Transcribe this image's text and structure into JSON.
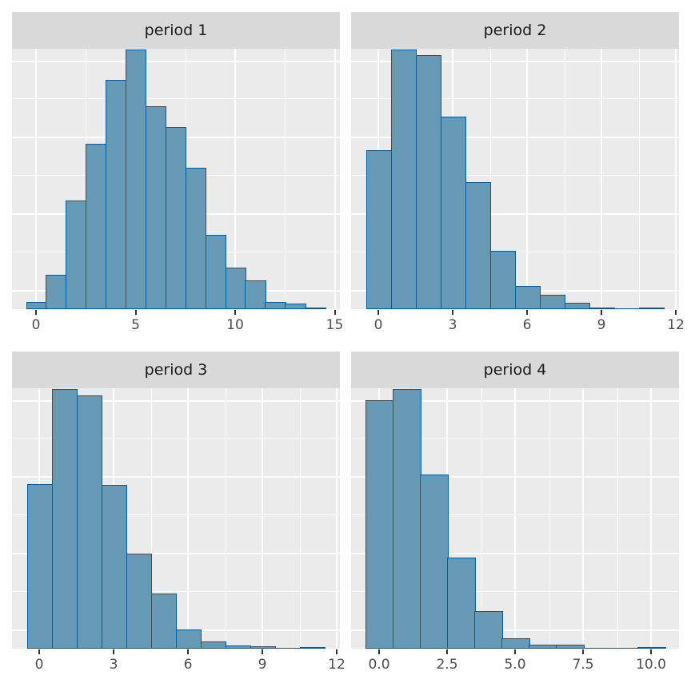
{
  "figure": {
    "panels": [
      {
        "title": "period 1",
        "x_ticks": [
          "0",
          "5",
          "10",
          "15"
        ]
      },
      {
        "title": "period 2",
        "x_ticks": [
          "0",
          "3",
          "6",
          "9",
          "12"
        ]
      },
      {
        "title": "period 3",
        "x_ticks": [
          "0",
          "3",
          "6",
          "9",
          "12"
        ]
      },
      {
        "title": "period 4",
        "x_ticks": [
          "0.0",
          "2.5",
          "5.0",
          "7.5",
          "10.0"
        ]
      }
    ],
    "colors": {
      "bar_fill": "#6699b4",
      "bar_border": "#0b5a96",
      "panel_bg": "#ebebeb",
      "strip_bg": "#d9d9d9",
      "grid": "#ffffff"
    }
  },
  "chart_data": [
    {
      "type": "bar",
      "title": "period 1",
      "xlabel": "",
      "ylabel": "",
      "categories": [
        0,
        1,
        2,
        3,
        4,
        5,
        6,
        7,
        8,
        9,
        10,
        11,
        12,
        13,
        14
      ],
      "values": [
        9,
        43,
        136,
        207,
        287,
        325,
        254,
        228,
        177,
        93,
        52,
        36,
        9,
        7,
        2
      ],
      "value_units": "relative bar height (y-axis unlabeled)",
      "x_ticks": [
        0,
        5,
        10,
        15
      ],
      "xlim": [
        -1.2,
        15.2
      ],
      "grid": true
    },
    {
      "type": "bar",
      "title": "period 2",
      "xlabel": "",
      "ylabel": "",
      "categories": [
        0,
        1,
        2,
        3,
        4,
        5,
        6,
        7,
        8,
        9,
        10,
        11
      ],
      "values": [
        199,
        325,
        318,
        241,
        159,
        73,
        29,
        18,
        8,
        2,
        0,
        2
      ],
      "value_units": "relative bar height (y-axis unlabeled)",
      "x_ticks": [
        0,
        3,
        6,
        9,
        12
      ],
      "xlim": [
        -1.1,
        12.1
      ],
      "grid": true
    },
    {
      "type": "bar",
      "title": "period 3",
      "xlabel": "",
      "ylabel": "",
      "categories": [
        0,
        1,
        2,
        3,
        4,
        5,
        6,
        7,
        8,
        9,
        10,
        11
      ],
      "values": [
        206,
        325,
        317,
        205,
        119,
        69,
        24,
        9,
        4,
        3,
        0,
        2
      ],
      "value_units": "relative bar height (y-axis unlabeled)",
      "x_ticks": [
        0,
        3,
        6,
        9,
        12
      ],
      "xlim": [
        -1.1,
        12.1
      ],
      "grid": true
    },
    {
      "type": "bar",
      "title": "period 4",
      "xlabel": "",
      "ylabel": "",
      "categories": [
        0,
        1,
        2,
        3,
        4,
        5,
        6,
        7,
        8,
        9,
        10
      ],
      "values": [
        311,
        325,
        218,
        114,
        47,
        13,
        5,
        5,
        0,
        0,
        2
      ],
      "value_units": "relative bar height (y-axis unlabeled)",
      "x_ticks": [
        0.0,
        2.5,
        5.0,
        7.5,
        10.0
      ],
      "xlim": [
        -1.05,
        11.05
      ],
      "grid": true
    }
  ]
}
